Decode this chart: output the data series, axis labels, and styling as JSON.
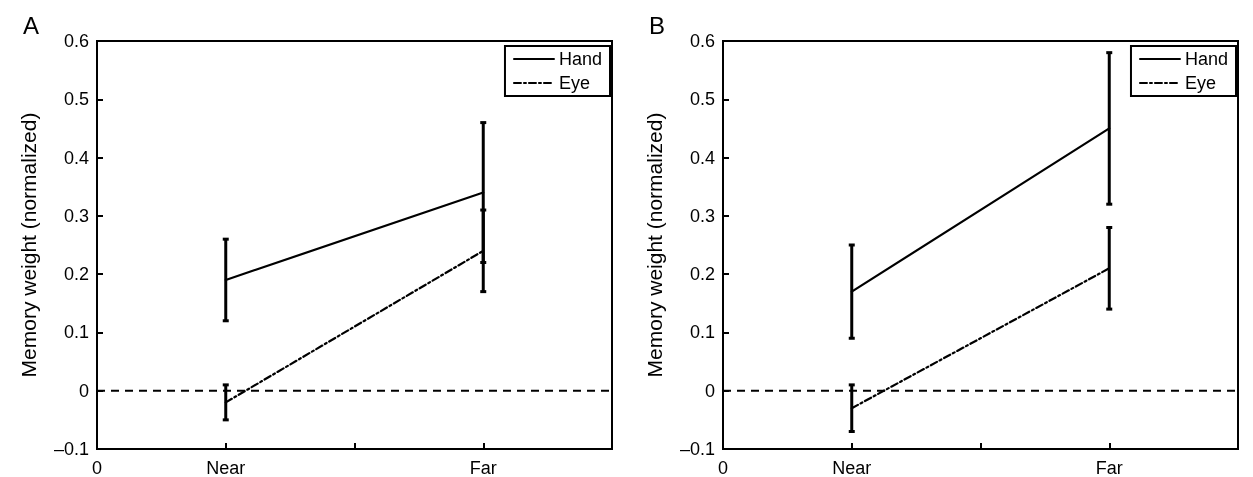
{
  "chart_data": [
    {
      "type": "line",
      "title": "A",
      "ylabel": "Memory weight (normalized)",
      "categories": [
        "0",
        "Near",
        null,
        "Far",
        null
      ],
      "ylim": [
        -0.1,
        0.6
      ],
      "yticks": [
        {
          "value": -0.1,
          "label": "–0.1"
        },
        0,
        0.1,
        0.2,
        0.3,
        0.4,
        0.5,
        0.6
      ],
      "legend": "top right",
      "marker": "none",
      "grid": false,
      "series": [
        {
          "name": "Hand",
          "color": "#000000",
          "line_style": "solid",
          "values": [
            null,
            0.19,
            null,
            0.34,
            null
          ],
          "errors": [
            null,
            0.07,
            null,
            0.12,
            null
          ]
        },
        {
          "name": "Eye",
          "color": "#000000",
          "line_style": "dashed",
          "values": [
            null,
            -0.02,
            null,
            0.24,
            null
          ],
          "errors": [
            null,
            0.03,
            null,
            0.07,
            null
          ]
        }
      ],
      "ref_lines": [
        {
          "axis": "y",
          "value": 0,
          "line_style": "dashed",
          "color": "#000000"
        }
      ]
    },
    {
      "type": "line",
      "title": "B",
      "ylabel": "Memory weight (normalized)",
      "categories": [
        "0",
        "Near",
        null,
        "Far",
        null
      ],
      "ylim": [
        -0.1,
        0.6
      ],
      "yticks": [
        {
          "value": -0.1,
          "label": "–0.1"
        },
        0,
        0.1,
        0.2,
        0.3,
        0.4,
        0.5,
        0.6
      ],
      "legend": "top right",
      "marker": "none",
      "grid": false,
      "series": [
        {
          "name": "Hand",
          "color": "#000000",
          "line_style": "solid",
          "values": [
            null,
            0.17,
            null,
            0.45,
            null
          ],
          "errors": [
            null,
            0.08,
            null,
            0.13,
            null
          ]
        },
        {
          "name": "Eye",
          "color": "#000000",
          "line_style": "dashed",
          "values": [
            null,
            -0.03,
            null,
            0.21,
            null
          ],
          "errors": [
            null,
            0.04,
            null,
            0.07,
            null
          ]
        }
      ],
      "ref_lines": [
        {
          "axis": "y",
          "value": 0,
          "line_style": "dashed",
          "color": "#000000"
        }
      ]
    }
  ]
}
